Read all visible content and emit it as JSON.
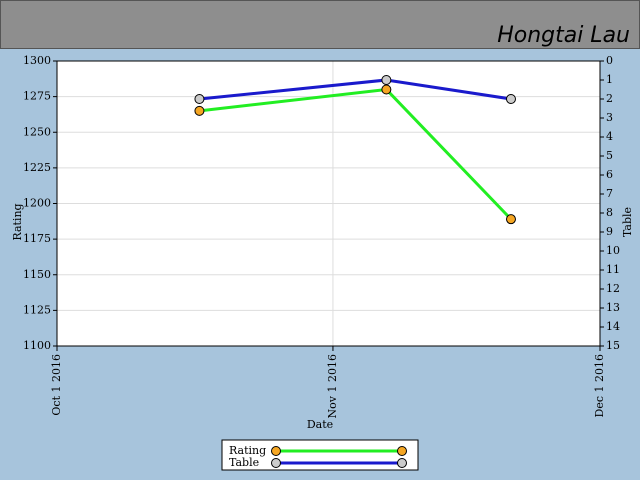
{
  "header": {
    "title": "Hongtai Lau"
  },
  "chart_data": {
    "type": "line",
    "xlabel": "Date",
    "ylabel": "Rating",
    "y2label": "Table",
    "x": [
      "2016-10-17",
      "2016-11-07",
      "2016-11-21"
    ],
    "xlim": [
      "2016-10-01",
      "2016-12-01"
    ],
    "xticks": [
      {
        "value": "2016-10-01",
        "label": "Oct 1 2016"
      },
      {
        "value": "2016-11-01",
        "label": "Nov 1 2016"
      },
      {
        "value": "2016-12-01",
        "label": "Dec 1 2016"
      }
    ],
    "ylim": [
      1100,
      1300
    ],
    "yticks": [
      1100,
      1125,
      1150,
      1175,
      1200,
      1225,
      1250,
      1275,
      1300
    ],
    "y2lim": [
      15,
      0
    ],
    "y2ticks": [
      0,
      1,
      2,
      3,
      4,
      5,
      6,
      7,
      8,
      9,
      10,
      11,
      12,
      13,
      14,
      15
    ],
    "grid": true,
    "series": [
      {
        "name": "Rating",
        "color": "#22ee22",
        "marker_color": "#f5a623",
        "values": [
          1265,
          1280,
          1189
        ]
      },
      {
        "name": "Table",
        "color": "#1a1acc",
        "marker_color": "#cccccc",
        "axis": "y2",
        "values": [
          2,
          1,
          2
        ]
      }
    ]
  }
}
